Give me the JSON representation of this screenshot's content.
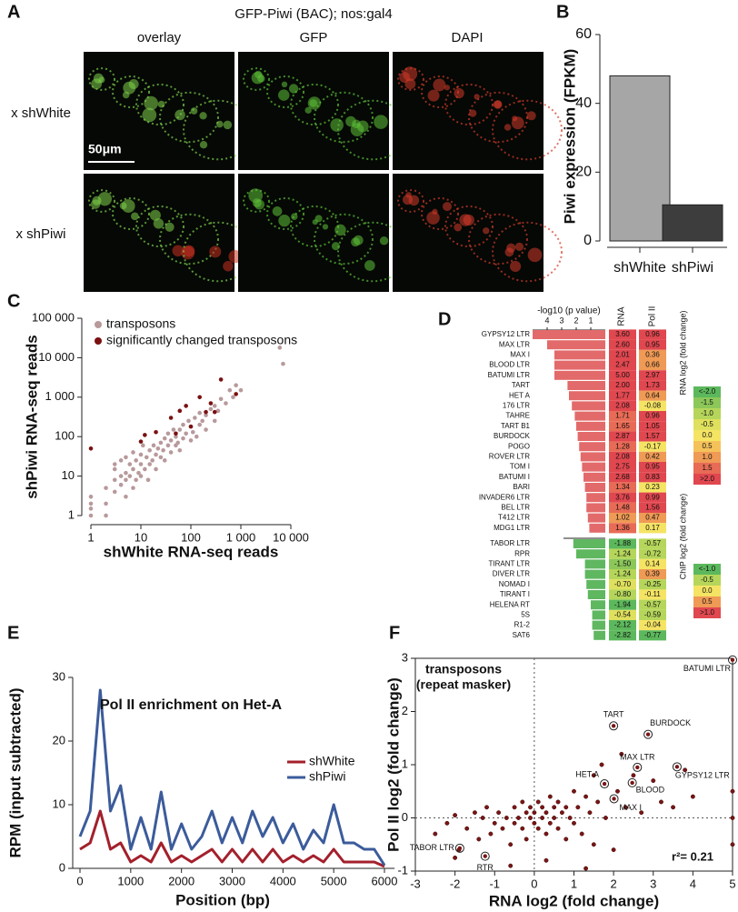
{
  "panel_a": {
    "label": "A",
    "title": "GFP-Piwi (BAC); nos:gal4",
    "columns": [
      "overlay",
      "GFP",
      "DAPI"
    ],
    "rows": [
      "x shWhite",
      "x shPiwi"
    ],
    "scale_bar": "50μm"
  },
  "chart_data": [
    {
      "type": "bar",
      "label": "B",
      "ylabel": "Piwi expression (FPKM)",
      "categories": [
        "shWhite",
        "shPiwi"
      ],
      "values": [
        48,
        10.5
      ],
      "colors": [
        "#a6a6a6",
        "#3d3d3d"
      ],
      "ylim": [
        0,
        60
      ],
      "yticks": [
        0,
        20,
        40,
        60
      ]
    },
    {
      "type": "scatter",
      "label": "C",
      "xlabel": "shWhite RNA-seq reads",
      "ylabel": "shPiwi RNA-seq reads",
      "log_scale": true,
      "legend": "top-left",
      "xlim": [
        1,
        10000
      ],
      "ylim": [
        1,
        100000
      ],
      "xticks": [
        1,
        10,
        100,
        {
          "value": 1000,
          "label": "1 000"
        },
        {
          "value": 10000,
          "label": "10 000"
        }
      ],
      "yticks": [
        1,
        10,
        100,
        {
          "value": 1000,
          "label": "1 000"
        },
        {
          "value": 10000,
          "label": "10 000"
        },
        {
          "value": 100000,
          "label": "100 000"
        }
      ],
      "series": [
        {
          "name": "transposons",
          "color": "#b8999c",
          "x": [
            1,
            1,
            1,
            1,
            2,
            2,
            2,
            3,
            3,
            3,
            3,
            4,
            4,
            4,
            5,
            5,
            5,
            5,
            6,
            6,
            7,
            7,
            7,
            8,
            8,
            9,
            10,
            10,
            10,
            11,
            12,
            13,
            14,
            15,
            15,
            17,
            18,
            20,
            20,
            22,
            25,
            25,
            28,
            30,
            30,
            35,
            35,
            40,
            40,
            45,
            50,
            50,
            55,
            60,
            60,
            70,
            70,
            80,
            90,
            100,
            100,
            110,
            120,
            130,
            150,
            150,
            170,
            200,
            200,
            250,
            300,
            300,
            350,
            400,
            500,
            600,
            700,
            800,
            1000,
            6000,
            7000
          ],
          "values": [
            1,
            2,
            3,
            1.5,
            1,
            2,
            5,
            4,
            8,
            15,
            20,
            6,
            10,
            25,
            3,
            8,
            12,
            30,
            10,
            20,
            5,
            15,
            40,
            8,
            25,
            12,
            10,
            20,
            35,
            60,
            15,
            30,
            8,
            20,
            45,
            25,
            60,
            15,
            35,
            50,
            30,
            70,
            45,
            90,
            25,
            60,
            120,
            40,
            80,
            150,
            60,
            100,
            70,
            150,
            45,
            90,
            200,
            120,
            250,
            80,
            180,
            130,
            300,
            100,
            200,
            400,
            250,
            150,
            350,
            500,
            250,
            600,
            450,
            900,
            700,
            1500,
            1000,
            2000,
            1500,
            18000,
            7000
          ]
        },
        {
          "name": "significantly changed transposons",
          "color": "#7a1010",
          "x": [
            1,
            10,
            12,
            20,
            40,
            50,
            60,
            80,
            100,
            150,
            200,
            250,
            300,
            400,
            800
          ],
          "values": [
            50,
            75,
            110,
            130,
            300,
            120,
            450,
            600,
            180,
            1000,
            420,
            700,
            420,
            2800,
            1200
          ]
        }
      ]
    },
    {
      "type": "bar_table",
      "label": "D",
      "xlabel": "-log10 (p value)",
      "xlim": [
        5,
        0
      ],
      "xticks": [
        4,
        3,
        2,
        1
      ],
      "columns": [
        "RNA",
        "Pol II"
      ],
      "groups": [
        {
          "color": "#e36a6a",
          "categories": [
            "GYPSY12 LTR",
            "MAX LTR",
            "MAX I",
            "BLOOD LTR",
            "BATUMI LTR",
            "TART",
            "HET A",
            "176 LTR",
            "TAHRE",
            "TART B1",
            "BURDOCK",
            "POGO",
            "ROVER LTR",
            "TOM I",
            "BATUMI I",
            "BARI",
            "INVADER6 LTR",
            "BEL LTR",
            "T412 LTR",
            "MDG1 LTR"
          ],
          "values": [
            5,
            4,
            3.5,
            3.5,
            3.5,
            2.6,
            2.5,
            2.3,
            2.1,
            2,
            1.9,
            1.8,
            1.7,
            1.6,
            1.5,
            1.4,
            1.3,
            1.3,
            1.2,
            1.1
          ],
          "rna": [
            "3.60",
            "2.60",
            "2.01",
            "2.47",
            "5.00",
            "2.00",
            "1.77",
            "2.08",
            "1.71",
            "1.65",
            "2.87",
            "1.28",
            "2.08",
            "2.75",
            "2.68",
            "1.34",
            "3.76",
            "1.48",
            "1.02",
            "1.36"
          ],
          "pol2": [
            "0.96",
            "0.95",
            "0.36",
            "0.66",
            "2.97",
            "1.73",
            "0.64",
            "-0.08",
            "0.96",
            "1.05",
            "1.57",
            "-0.17",
            "0.42",
            "0.95",
            "0.83",
            "0.23",
            "0.99",
            "1.56",
            "0.47",
            "0.17"
          ]
        },
        {
          "color": "#5fb760",
          "categories": [
            "TABOR LTR",
            "RPR",
            "TIRANT LTR",
            "DIVER LTR",
            "NOMAD I",
            "TIRANT I",
            "HELENA RT",
            "5S",
            "R1-2",
            "SAT6"
          ],
          "values": [
            2.2,
            2,
            1.4,
            1.4,
            1.3,
            1.2,
            1,
            0.9,
            0.9,
            0.8
          ],
          "rna": [
            "-1.88",
            "-1.24",
            "-1.50",
            "-1.24",
            "-0.70",
            "-0.80",
            "-1.94",
            "-0.54",
            "-2.12",
            "-2.82"
          ],
          "pol2": [
            "-0.57",
            "-0.72",
            "0.14",
            "0.39",
            "-0.25",
            "-0.11",
            "-0.57",
            "-0.59",
            "-0.04",
            "-0.77"
          ]
        }
      ],
      "scales": [
        {
          "title": "RNA log2 (fold change)",
          "colors": [
            "#5cb85c",
            "#8cc75a",
            "#b5d65a",
            "#dfe05d",
            "#f5e463",
            "#f5c25a",
            "#ef9a55",
            "#e86b55",
            "#e0474f"
          ],
          "ticks": [
            {
              "value": -2,
              "label": "<-2.0"
            },
            -1.5,
            {
              "value": -1,
              "label": "-1.0"
            },
            -0.5,
            {
              "value": 0,
              "label": "0.0"
            },
            0.5,
            {
              "value": 1,
              "label": "1.0"
            },
            1.5,
            {
              "value": 2,
              "label": ">2.0"
            }
          ]
        },
        {
          "title": "ChIP log2 (fold change)",
          "colors": [
            "#5cb85c",
            "#b5d65a",
            "#f5e463",
            "#ef9a55",
            "#e0474f"
          ],
          "ticks": [
            {
              "value": -1,
              "label": "<-1.0"
            },
            -0.5,
            {
              "value": 0,
              "label": "0.0"
            },
            0.5,
            {
              "value": 1,
              "label": ">1.0"
            }
          ]
        }
      ]
    },
    {
      "type": "line",
      "label": "E",
      "title": "Pol II enrichment on Het-A",
      "xlabel": "Position (bp)",
      "ylabel": "RPM (input subtracted)",
      "legend": "center-right",
      "x": [
        0,
        200,
        400,
        600,
        800,
        1000,
        1200,
        1400,
        1600,
        1800,
        2000,
        2200,
        2400,
        2600,
        2800,
        3000,
        3200,
        3400,
        3600,
        3800,
        4000,
        4200,
        4400,
        4600,
        4800,
        5000,
        5200,
        5400,
        5600,
        5800,
        6000
      ],
      "xlim": [
        0,
        6200
      ],
      "ylim": [
        0,
        30
      ],
      "xticks": [
        0,
        1000,
        2000,
        3000,
        4000,
        5000,
        6000
      ],
      "yticks": [
        0,
        10,
        20,
        30
      ],
      "series": [
        {
          "name": "shWhite",
          "color": "#a3202c",
          "values": [
            3,
            4,
            9,
            3,
            4,
            1,
            2,
            1,
            4,
            1,
            2,
            1,
            2,
            3,
            1,
            3,
            1,
            3,
            1,
            3,
            1,
            2,
            1,
            2,
            1,
            3,
            1,
            1,
            1,
            1,
            0.3
          ]
        },
        {
          "name": "shPiwi",
          "color": "#3b5b9b",
          "values": [
            5,
            9,
            28,
            9,
            13,
            3,
            8,
            3,
            12,
            3,
            7,
            3,
            5,
            9,
            4,
            8,
            4,
            9,
            5,
            8,
            4,
            7,
            3,
            6,
            4,
            10,
            4,
            4,
            3,
            3,
            0.5
          ]
        }
      ]
    },
    {
      "type": "scatter",
      "label": "F",
      "title": "transposons",
      "subtitle": "(repeat masker)",
      "xlabel": "RNA log2 (fold change)",
      "ylabel": "Pol II log2 (fold change)",
      "annotation": "r²= 0.21",
      "zero_lines": true,
      "xlim": [
        -3,
        5
      ],
      "ylim": [
        -1,
        3
      ],
      "xticks": [
        -3,
        -2,
        -1,
        0,
        1,
        2,
        3,
        4,
        5
      ],
      "yticks": [
        -1,
        0,
        1,
        2,
        3
      ],
      "series": [
        {
          "color": "#7a1515",
          "x": [
            -2.5,
            -2.2,
            -2,
            -1.9,
            -1.7,
            -1.5,
            -1.4,
            -1.3,
            -1.2,
            -1.1,
            -1,
            -0.9,
            -0.8,
            -0.7,
            -0.6,
            -0.5,
            -0.5,
            -0.4,
            -0.3,
            -0.3,
            -0.2,
            -0.2,
            -0.1,
            -0.1,
            0,
            0,
            0.1,
            0.1,
            0.2,
            0.2,
            0.3,
            0.3,
            0.4,
            0.4,
            0.5,
            0.5,
            0.6,
            0.6,
            0.7,
            0.8,
            0.8,
            0.9,
            1,
            1,
            1.1,
            1.2,
            1.3,
            1.4,
            1.5,
            1.5,
            1.6,
            1.7,
            1.8,
            2,
            2.1,
            2.2,
            2.3,
            2.5,
            2.7,
            3,
            3.2,
            3.5,
            3.8,
            4,
            5,
            5,
            5,
            -2,
            0.3,
            -0.6,
            1.3
          ],
          "values": [
            -0.3,
            -0.1,
            0.05,
            -0.6,
            -0.2,
            0.1,
            -0.4,
            0,
            0.2,
            -0.3,
            -0.1,
            0.1,
            -0.2,
            0,
            -0.5,
            0.2,
            -0.1,
            0,
            0.3,
            -0.2,
            0.1,
            -0.4,
            0,
            0.2,
            -0.1,
            0.1,
            0.3,
            -0.2,
            0,
            0.2,
            -0.3,
            0.1,
            0.4,
            -0.1,
            0,
            0.2,
            -0.2,
            0.3,
            0.1,
            -0.4,
            0.2,
            0,
            0.5,
            -0.1,
            0.2,
            -0.3,
            0.4,
            0.1,
            0.8,
            -0.5,
            0.3,
            1,
            0,
            -0.6,
            0.5,
            1.2,
            0.2,
            0.8,
            0.1,
            0.7,
            0.3,
            0.2,
            0.9,
            0.4,
            0,
            -0.5,
            0.5,
            -0.75,
            -0.8,
            -0.9,
            -0.95
          ]
        }
      ],
      "highlights": {
        "labels": [
          "BATUMI LTR",
          "TART",
          "BURDOCK",
          "MAX LTR",
          "GYPSY12 LTR",
          "HET A",
          "BLOOD",
          "MAX I",
          "TABOR LTR",
          "RTR"
        ],
        "x": [
          5,
          2,
          2.87,
          2.6,
          3.6,
          1.77,
          2.47,
          2.01,
          -1.88,
          -1.24
        ],
        "values": [
          2.97,
          1.73,
          1.57,
          0.95,
          0.96,
          0.64,
          0.66,
          0.36,
          -0.57,
          -0.72
        ]
      }
    }
  ]
}
